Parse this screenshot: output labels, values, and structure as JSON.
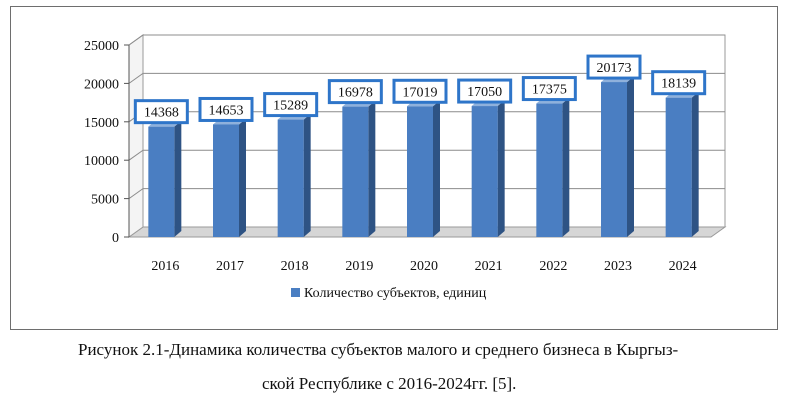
{
  "chart_data": {
    "type": "bar",
    "categories": [
      "2016",
      "2017",
      "2018",
      "2019",
      "2020",
      "2021",
      "2022",
      "2023",
      "2024"
    ],
    "series": [
      {
        "name": "Количество субъектов, единиц",
        "values": [
          14368,
          14653,
          15289,
          16978,
          17019,
          17050,
          17375,
          20173,
          18139
        ]
      }
    ],
    "yticks": [
      "0",
      "5000",
      "10000",
      "15000",
      "20000",
      "25000"
    ],
    "ylim": [
      0,
      25000
    ],
    "grid": true,
    "legend_position": "bottom",
    "bar_style": "3d",
    "colors": {
      "bar_front": "#4a7ec2",
      "bar_side": "#2e5384",
      "bar_top": "#8fb1dc",
      "label_border": "#2e75c9",
      "wall": "#ffffff",
      "floor": "#d6d6d6"
    }
  },
  "caption": {
    "line1": "Рисунок 2.1-Динамика количества субъектов малого и среднего бизнеса в Кыргыз-",
    "line2": "ской Республике с 2016-2024гг. [5]."
  }
}
